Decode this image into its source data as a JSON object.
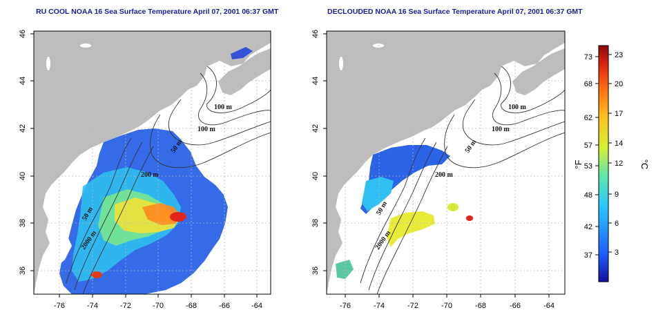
{
  "maps": [
    {
      "title": "RU COOL NOAA 16 Sea Surface Temperature April 07, 2001 06:37 GMT",
      "contour_labels": [
        "100 m",
        "100 m",
        "50 m",
        "200 m",
        "50 m",
        "2000 m"
      ]
    },
    {
      "title": "DECLOUDED NOAA 16 Sea Surface Temperature April 07, 2001 06:37 GMT",
      "contour_labels": [
        "100 m",
        "100 m",
        "50 m",
        "200 m",
        "50 m",
        "2000 m"
      ]
    }
  ],
  "axes": {
    "lon_ticks": [
      "-76",
      "-74",
      "-72",
      "-70",
      "-68",
      "-66",
      "-64"
    ],
    "lat_ticks": [
      "46",
      "44",
      "42",
      "40",
      "38",
      "36"
    ],
    "lon_range": [
      -77.3,
      -62.8
    ],
    "lat_range": [
      35.0,
      46.0
    ],
    "grid": true
  },
  "colorbar": {
    "f_ticks": [
      "73",
      "68",
      "62",
      "57",
      "53",
      "48",
      "42",
      "37"
    ],
    "c_ticks": [
      "23",
      "20",
      "17",
      "14",
      "12",
      "9",
      "6",
      "3"
    ],
    "f_label": "°F",
    "c_label": "°C",
    "c_range": [
      0,
      24
    ],
    "colors": [
      "#1010a0",
      "#1f5fff",
      "#28c8ff",
      "#5fe8a8",
      "#d8f032",
      "#ffc01e",
      "#ff6a14",
      "#d81e10",
      "#8a0a0a"
    ]
  },
  "colors": {
    "land": "#bdbdbd",
    "title": "#1a1a9a",
    "grid": "#b8b8b8"
  }
}
